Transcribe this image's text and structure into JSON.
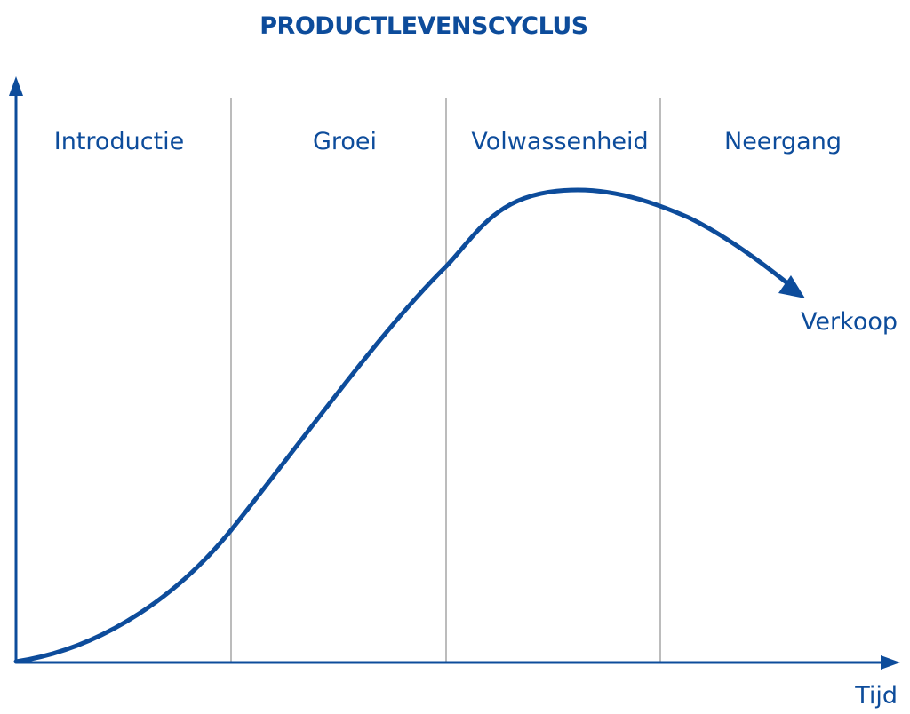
{
  "title": "PRODUCTLEVENSCYCLUS",
  "phases": [
    {
      "label": "Introductie"
    },
    {
      "label": "Groei"
    },
    {
      "label": "Volwassenheid"
    },
    {
      "label": "Neergang"
    }
  ],
  "curve_label": "Verkoop",
  "x_axis_label": "Tijd",
  "colors": {
    "primary": "#0d4c9b",
    "divider": "#a6a6a6",
    "background": "#ffffff"
  }
}
